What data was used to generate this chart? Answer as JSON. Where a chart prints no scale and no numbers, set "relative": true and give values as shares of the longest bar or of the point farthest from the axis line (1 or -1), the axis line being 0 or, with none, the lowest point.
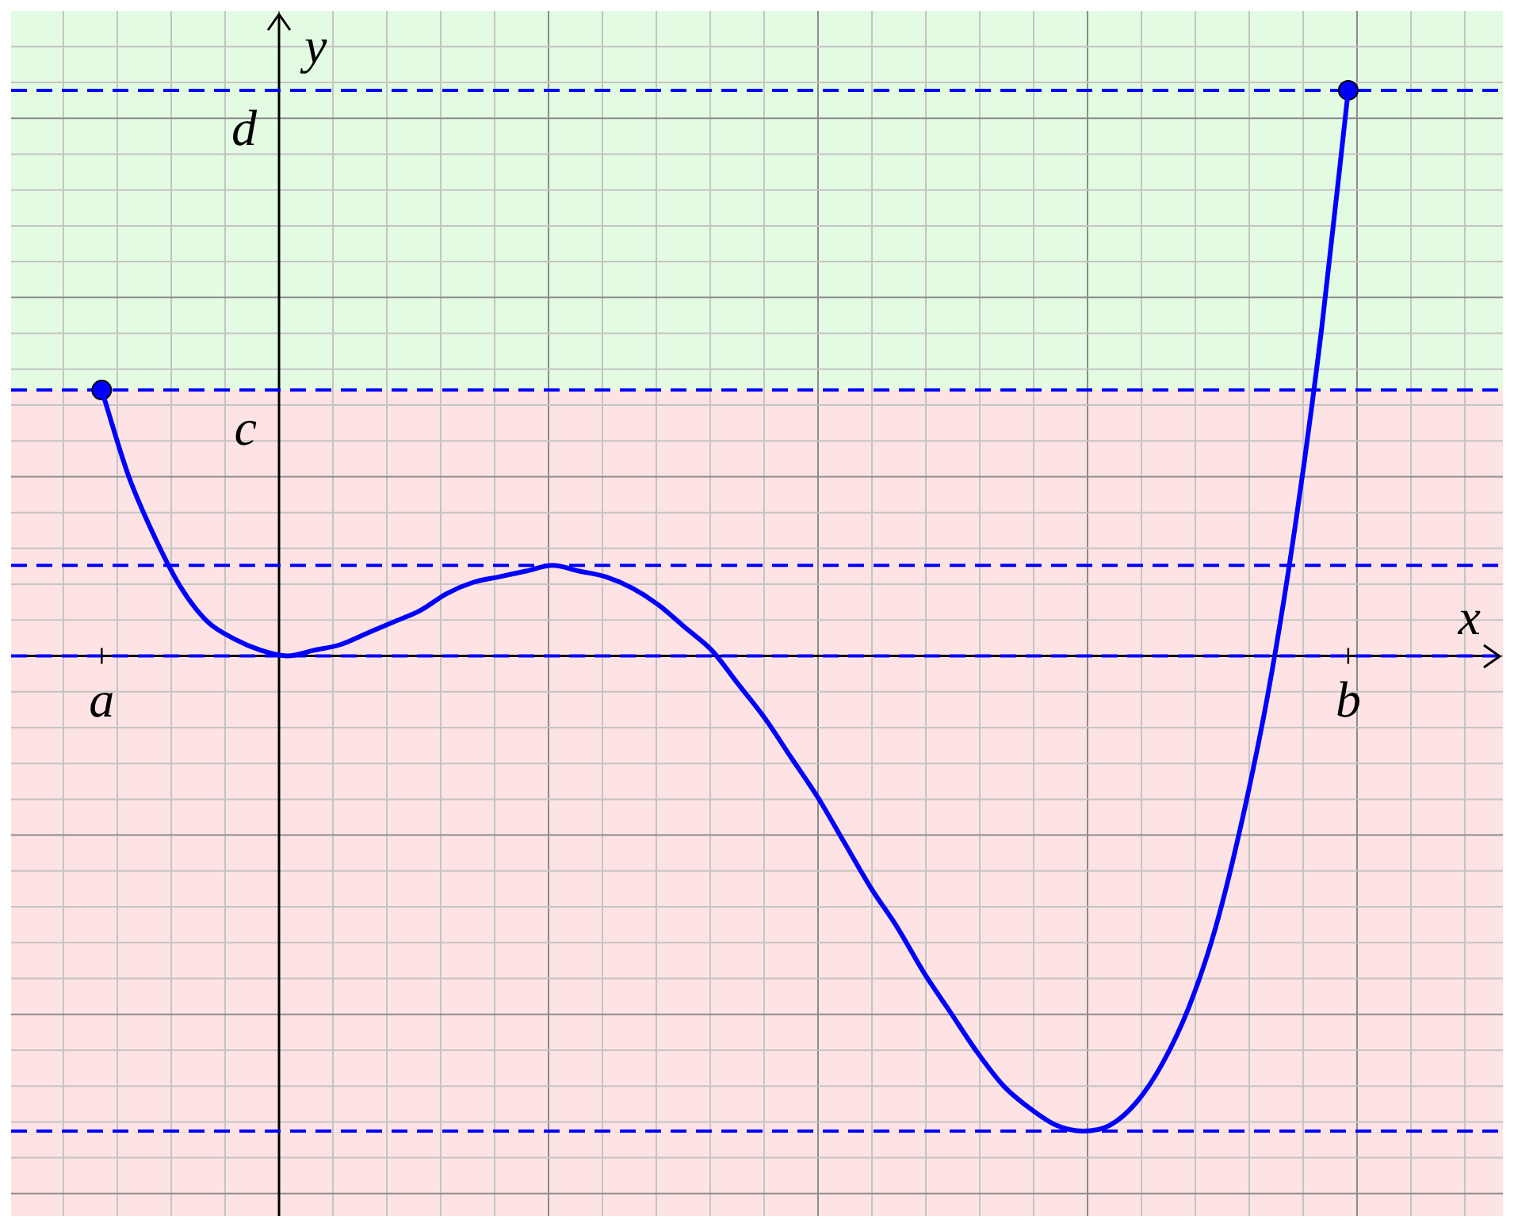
{
  "chart_data": {
    "type": "line",
    "xlabel": "x",
    "ylabel": "y",
    "relative": true,
    "grid": true,
    "legend": false,
    "marker": "none",
    "line_style": "solid",
    "categories": [
      "a",
      null,
      null,
      null,
      null,
      null,
      null,
      null,
      null,
      null,
      null,
      null,
      null,
      null,
      null,
      null,
      null,
      null,
      null,
      null,
      null,
      null,
      null,
      null,
      null,
      null,
      null,
      null,
      null,
      null,
      null,
      null,
      null,
      null,
      null,
      null,
      null,
      null,
      null,
      null,
      null,
      null,
      null,
      null,
      null,
      null,
      null,
      "b"
    ],
    "series": [
      {
        "type": "line",
        "color": "#0000ff",
        "values": [
          0.47,
          0.32,
          0.21,
          0.12,
          0.06,
          0.03,
          0.01,
          0,
          0.01,
          0.02,
          0.04,
          0.06,
          0.08,
          0.11,
          0.13,
          0.14,
          0.15,
          0.16,
          0.15,
          0.14,
          0.12,
          0.09,
          0.05,
          0.01,
          -0.05,
          -0.11,
          -0.18,
          -0.25,
          -0.33,
          -0.41,
          -0.48,
          -0.56,
          -0.63,
          -0.7,
          -0.76,
          -0.8,
          -0.83,
          -0.84,
          -0.83,
          -0.79,
          -0.72,
          -0.62,
          -0.48,
          -0.29,
          -0.06,
          0.23,
          0.58,
          1
        ]
      },
      {
        "type": "scatter",
        "color": "#0000ff",
        "marker": "circle",
        "values": [
          0.47,
          null,
          null,
          null,
          null,
          null,
          null,
          null,
          null,
          null,
          null,
          null,
          null,
          null,
          null,
          null,
          null,
          null,
          null,
          null,
          null,
          null,
          null,
          null,
          null,
          null,
          null,
          null,
          null,
          null,
          null,
          null,
          null,
          null,
          null,
          null,
          null,
          null,
          null,
          null,
          null,
          null,
          null,
          null,
          null,
          null,
          null,
          1
        ]
      }
    ],
    "ref_lines": [
      {
        "axis": "y",
        "value": 1,
        "label": "d",
        "color": "#0000ff",
        "line_style": "dashed"
      },
      {
        "axis": "y",
        "value": 0.47,
        "label": "c",
        "color": "#0000ff",
        "line_style": "dashed"
      },
      {
        "axis": "y",
        "value": 0.16,
        "color": "#0000ff",
        "line_style": "dashed"
      },
      {
        "axis": "y",
        "value": 0,
        "color": "#0000ff",
        "line_style": "dashed"
      },
      {
        "axis": "y",
        "value": -0.84,
        "color": "#0000ff",
        "line_style": "dashed"
      }
    ],
    "bands": [
      {
        "axis": "y",
        "from": 0.47,
        "to": 1.14,
        "color": "#e3fbe3"
      },
      {
        "axis": "y",
        "from": -0.99,
        "to": 0.47,
        "color": "#fde3e3"
      }
    ]
  }
}
